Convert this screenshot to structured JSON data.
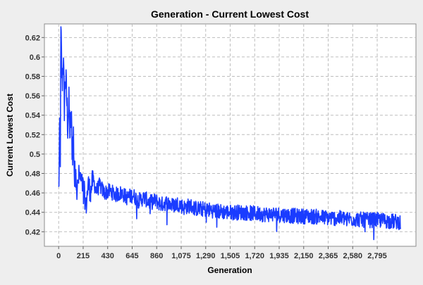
{
  "chart_data": {
    "type": "line",
    "title": "Generation - Current Lowest Cost",
    "xlabel": "Generation",
    "ylabel": "Current Lowest Cost",
    "xlim": [
      -125,
      3135
    ],
    "ylim": [
      0.405,
      0.634
    ],
    "x_ticks": [
      0,
      215,
      430,
      645,
      860,
      1075,
      1290,
      1505,
      1720,
      1935,
      2150,
      2365,
      2580,
      2795
    ],
    "x_tick_labels": [
      "0",
      "215",
      "430",
      "645",
      "860",
      "1,075",
      "1,290",
      "1,505",
      "1,720",
      "1,935",
      "2,150",
      "2,365",
      "2,580",
      "2,795"
    ],
    "y_ticks": [
      0.42,
      0.44,
      0.46,
      0.48,
      0.5,
      0.52,
      0.54,
      0.56,
      0.58,
      0.6,
      0.62
    ],
    "y_tick_labels": [
      "0.42",
      "0.44",
      "0.46",
      "0.48",
      "0.5",
      "0.52",
      "0.54",
      "0.56",
      "0.58",
      "0.6",
      "0.62"
    ],
    "grid": true,
    "legend": "none",
    "series": [
      {
        "color": "#1a3cff",
        "x_range": [
          0,
          3000
        ],
        "points": [
          [
            0,
            0.46
          ],
          [
            5,
            0.49
          ],
          [
            10,
            0.53
          ],
          [
            15,
            0.5
          ],
          [
            20,
            0.628
          ],
          [
            25,
            0.6
          ],
          [
            30,
            0.57
          ],
          [
            40,
            0.6
          ],
          [
            50,
            0.55
          ],
          [
            60,
            0.58
          ],
          [
            70,
            0.56
          ],
          [
            80,
            0.53
          ],
          [
            90,
            0.55
          ],
          [
            100,
            0.52
          ],
          [
            110,
            0.54
          ],
          [
            120,
            0.5
          ],
          [
            130,
            0.52
          ],
          [
            140,
            0.47
          ],
          [
            150,
            0.49
          ],
          [
            160,
            0.46
          ],
          [
            170,
            0.47
          ],
          [
            180,
            0.48
          ],
          [
            200,
            0.47
          ],
          [
            220,
            0.465
          ],
          [
            240,
            0.445
          ],
          [
            260,
            0.47
          ],
          [
            280,
            0.46
          ],
          [
            300,
            0.475
          ],
          [
            330,
            0.462
          ],
          [
            360,
            0.468
          ],
          [
            400,
            0.46
          ],
          [
            450,
            0.462
          ],
          [
            500,
            0.458
          ],
          [
            550,
            0.46
          ],
          [
            600,
            0.455
          ],
          [
            650,
            0.458
          ],
          [
            700,
            0.452
          ],
          [
            750,
            0.455
          ],
          [
            800,
            0.45
          ],
          [
            850,
            0.452
          ],
          [
            900,
            0.448
          ],
          [
            950,
            0.45
          ],
          [
            1000,
            0.447
          ],
          [
            1050,
            0.449
          ],
          [
            1100,
            0.445
          ],
          [
            1150,
            0.447
          ],
          [
            1200,
            0.444
          ],
          [
            1300,
            0.443
          ],
          [
            1400,
            0.441
          ],
          [
            1500,
            0.44
          ],
          [
            1600,
            0.44
          ],
          [
            1700,
            0.439
          ],
          [
            1800,
            0.438
          ],
          [
            1900,
            0.438
          ],
          [
            2000,
            0.437
          ],
          [
            2100,
            0.436
          ],
          [
            2200,
            0.436
          ],
          [
            2300,
            0.435
          ],
          [
            2400,
            0.434
          ],
          [
            2500,
            0.434
          ],
          [
            2600,
            0.433
          ],
          [
            2700,
            0.432
          ],
          [
            2800,
            0.432
          ],
          [
            2900,
            0.431
          ],
          [
            3000,
            0.43
          ]
        ]
      }
    ]
  }
}
